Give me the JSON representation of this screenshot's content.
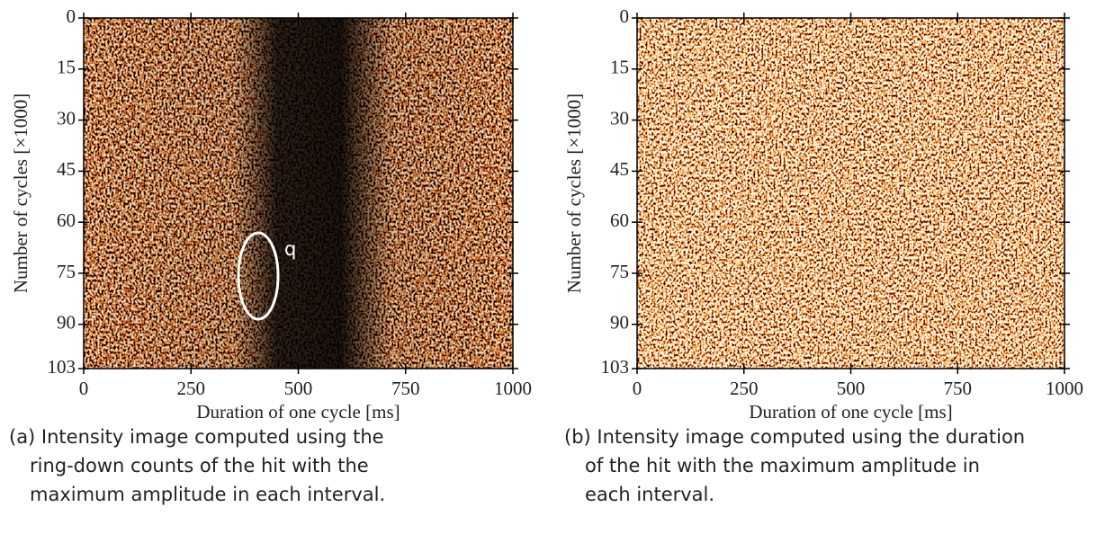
{
  "chart_data": [
    {
      "type": "heatmap",
      "xlabel": "Duration of one cycle [ms]",
      "ylabel": "Number of cycles [×1000]",
      "xlim": [
        0,
        1000
      ],
      "xticks": [
        0,
        250,
        500,
        750,
        1000
      ],
      "ylim": [
        0,
        103
      ],
      "yticks": [
        0,
        15,
        30,
        45,
        60,
        75,
        90,
        103
      ],
      "y_inverted": true,
      "annotation": "q",
      "caption": [
        "(a) Intensity image computed using the",
        "ring-down counts of the hit with the",
        "maximum amplitude in each interval."
      ]
    },
    {
      "type": "heatmap",
      "xlabel": "Duration of one cycle [ms]",
      "ylabel": "Number of cycles [×1000]",
      "xlim": [
        0,
        1000
      ],
      "xticks": [
        0,
        250,
        500,
        750,
        1000
      ],
      "ylim": [
        0,
        103
      ],
      "yticks": [
        0,
        15,
        30,
        45,
        60,
        75,
        90,
        103
      ],
      "y_inverted": true,
      "caption": [
        "(b) Intensity image computed using the duration",
        "of the hit with the maximum amplitude in",
        "each interval."
      ]
    }
  ]
}
